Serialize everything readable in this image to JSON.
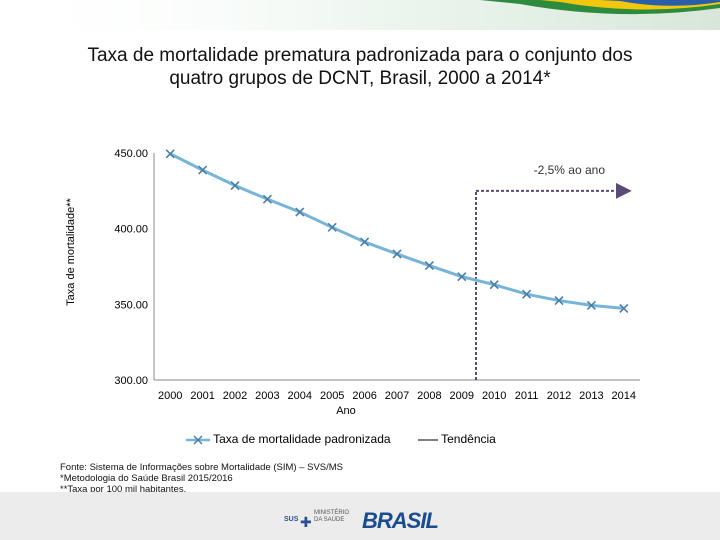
{
  "title_lines": [
    "Taxa de mortalidade prematura padronizada para o conjunto dos",
    "quatro grupos de DCNT, Brasil, 2000 a 2014*"
  ],
  "colors": {
    "series": "#77b5d8",
    "marker": "#4a7fa8",
    "trend_line": "#5a4a78",
    "band_green": "#2e8b3e",
    "band_yellow": "#f2c80f",
    "band_blue": "#2a5ea8"
  },
  "chart_data": {
    "type": "line",
    "title": "Taxa de mortalidade prematura padronizada para o conjunto dos quatro grupos de DCNT, Brasil, 2000 a 2014*",
    "xlabel": "Ano",
    "ylabel": "Taxa de mortalidade**",
    "ylim": [
      300,
      450
    ],
    "yticks": [
      300,
      350,
      400,
      450
    ],
    "ytick_labels": [
      "300.00",
      "350.00",
      "400.00",
      "450.00"
    ],
    "categories": [
      "2000",
      "2001",
      "2002",
      "2003",
      "2004",
      "2005",
      "2006",
      "2007",
      "2008",
      "2009",
      "2010",
      "2011",
      "2012",
      "2013",
      "2014"
    ],
    "series": [
      {
        "name": "Taxa de mortalidade padronizada",
        "values": [
          449.5,
          438.7,
          428.5,
          419.5,
          411.0,
          400.9,
          391.2,
          383.3,
          375.6,
          368.3,
          363.0,
          356.7,
          352.5,
          349.3,
          347.3
        ]
      }
    ],
    "annotation": {
      "text": "-2,5% ao ano",
      "trend_from_year": "2010",
      "trend_value": 425
    },
    "legend": [
      "Taxa de mortalidade padronizada",
      "Tendência"
    ],
    "grid": false
  },
  "footnotes": [
    "Fonte: Sistema de Informações sobre Mortalidade (SIM) – SVS/MS",
    "*Metodologia do Saúde Brasil 2015/2016",
    "**Taxa por 100 mil habitantes."
  ],
  "logos": {
    "sus": "SUS",
    "ministerio": [
      "MINISTÉRIO",
      "DA SAÚDE"
    ],
    "brasil": "BRASIL"
  }
}
